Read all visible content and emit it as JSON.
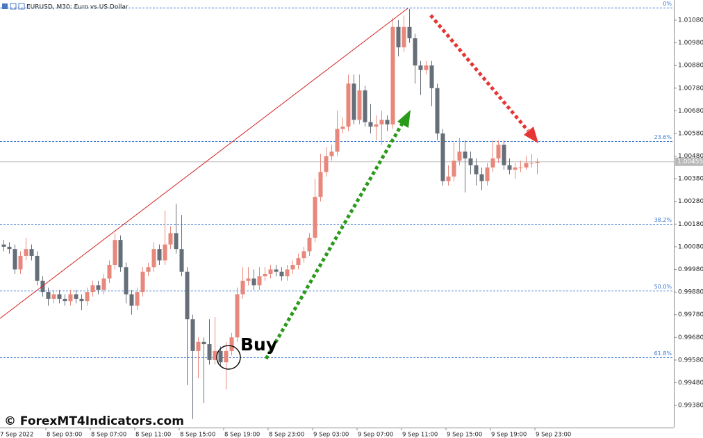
{
  "chart_data": {
    "type": "candlestick",
    "title": "EURUSD, M30:  Euro vs US Dollar",
    "watermark": "© ForexMT4Indicators.com",
    "annotation": "Buy",
    "up_color": "#e8877b",
    "down_color": "#666e78",
    "open": [
      1.0009,
      1.0008,
      1.0007,
      0.9998,
      1.0004,
      1.0007,
      1.0004,
      0.9993,
      0.9988,
      0.9985,
      0.9987,
      0.9985,
      0.9984,
      0.9987,
      0.9985,
      0.9984,
      0.9988,
      0.9991,
      0.9989,
      0.9994,
      1.0,
      1.0011,
      0.9999,
      0.9987,
      0.9982,
      0.9988,
      0.9997,
      0.9999,
      1.0007,
      1.0002,
      1.0009,
      1.0014,
      1.0007,
      0.9997,
      0.9976,
      0.9962,
      0.9966,
      0.9965,
      0.9958,
      0.9962,
      0.9957,
      0.9962,
      0.9968,
      0.9987,
      0.9993,
      0.9994,
      0.9991,
      0.9995,
      0.9996,
      0.9998,
      0.9997,
      0.9995,
      0.9998,
      1.0,
      1.0003,
      1.0006,
      1.0012,
      1.003,
      1.0041,
      1.0048,
      1.005,
      1.006,
      1.0061,
      1.008,
      1.0064,
      1.0077,
      1.0063,
      1.0061,
      1.0062,
      1.0064,
      1.0062,
      1.0105,
      1.0096,
      1.0105,
      1.01,
      1.0088,
      1.0086,
      1.0088,
      1.0078,
      1.0058,
      1.0037,
      1.0039,
      1.0046,
      1.005,
      1.0047,
      1.0044,
      1.004,
      1.0037,
      1.0043,
      1.0047,
      1.0053,
      1.0044,
      1.0042,
      1.0043,
      1.0043,
      1.0045,
      1.0045
    ],
    "high": [
      1.0011,
      1.001,
      1.0009,
      1.0006,
      1.0012,
      1.0009,
      1.0006,
      0.9995,
      0.999,
      0.9989,
      0.9989,
      0.9987,
      0.9989,
      0.9989,
      0.9987,
      0.999,
      0.9993,
      0.9993,
      0.9996,
      1.0002,
      1.0014,
      1.0013,
      1.0001,
      0.9989,
      0.999,
      0.9999,
      1.0001,
      1.001,
      1.0009,
      1.0024,
      1.0017,
      1.0027,
      1.0022,
      0.9999,
      0.9978,
      0.9968,
      0.9968,
      0.9976,
      0.9977,
      0.9964,
      0.9966,
      0.997,
      0.999,
      0.9999,
      0.9999,
      0.9998,
      0.9999,
      0.9999,
      1.0,
      1.0,
      0.9999,
      1.0,
      1.0002,
      1.0005,
      1.0008,
      1.0014,
      1.0038,
      1.0049,
      1.0052,
      1.0053,
      1.0068,
      1.0065,
      1.0084,
      1.0084,
      1.0084,
      1.0079,
      1.0071,
      1.0066,
      1.0068,
      1.0066,
      1.0109,
      1.0108,
      1.011,
      1.0113,
      1.0102,
      1.009,
      1.009,
      1.009,
      1.008,
      1.006,
      1.0044,
      1.0054,
      1.0056,
      1.0055,
      1.005,
      1.0047,
      1.0043,
      1.0045,
      1.0055,
      1.0055,
      1.0055,
      1.0047,
      1.0045,
      1.0046,
      1.0048,
      1.0049,
      1.0047
    ],
    "low": [
      1.0006,
      1.0005,
      0.9996,
      0.9996,
      1.0002,
      1.0002,
      0.9991,
      0.9986,
      0.9982,
      0.9983,
      0.9983,
      0.9982,
      0.9982,
      0.9983,
      0.998,
      0.9982,
      0.9986,
      0.9987,
      0.9987,
      0.9992,
      0.9998,
      0.9997,
      0.9983,
      0.9978,
      0.998,
      0.9986,
      0.9995,
      0.9997,
      1.0,
      1.0,
      1.0007,
      1.0005,
      0.9995,
      0.9947,
      0.9932,
      0.995,
      0.9939,
      0.9956,
      0.9956,
      0.9955,
      0.9945,
      0.996,
      0.9966,
      0.9985,
      0.9991,
      0.9989,
      0.9989,
      0.9993,
      0.9994,
      0.9995,
      0.9993,
      0.9993,
      0.9996,
      0.9998,
      1.0001,
      1.0004,
      1.001,
      1.0028,
      1.0039,
      1.0046,
      1.0048,
      1.0058,
      1.0059,
      1.0062,
      1.0062,
      1.0061,
      1.0058,
      1.0055,
      1.0053,
      1.0059,
      1.006,
      1.0092,
      1.0094,
      1.0098,
      1.008,
      1.0075,
      1.0084,
      1.007,
      1.0055,
      1.0035,
      1.0035,
      1.0037,
      1.0044,
      1.0032,
      1.004,
      1.0035,
      1.0033,
      1.0035,
      1.0041,
      1.0045,
      1.0042,
      1.004,
      1.0038,
      1.0041,
      1.0042,
      1.0043,
      1.004
    ],
    "close": [
      1.0008,
      1.0007,
      0.9998,
      1.0004,
      1.0007,
      1.0004,
      0.9993,
      0.9988,
      0.9985,
      0.9987,
      0.9985,
      0.9984,
      0.9987,
      0.9985,
      0.9984,
      0.9988,
      0.9991,
      0.9989,
      0.9994,
      1.0,
      1.0011,
      0.9999,
      0.9987,
      0.9982,
      0.9988,
      0.9997,
      0.9999,
      1.0007,
      1.0002,
      1.0009,
      1.0014,
      1.0007,
      0.9997,
      0.9976,
      0.9962,
      0.9966,
      0.9965,
      0.9958,
      0.9962,
      0.9957,
      0.9962,
      0.9968,
      0.9987,
      0.9993,
      0.9994,
      0.9991,
      0.9995,
      0.9996,
      0.9998,
      0.9997,
      0.9995,
      0.9998,
      1.0,
      1.0003,
      1.0006,
      1.0012,
      1.003,
      1.0041,
      1.0048,
      1.005,
      1.006,
      1.0061,
      1.008,
      1.0064,
      1.0077,
      1.0063,
      1.0061,
      1.0062,
      1.0064,
      1.0062,
      1.0105,
      1.0096,
      1.0105,
      1.01,
      1.0088,
      1.0086,
      1.0088,
      1.0078,
      1.0058,
      1.0037,
      1.0039,
      1.0046,
      1.005,
      1.0047,
      1.0044,
      1.004,
      1.0037,
      1.0043,
      1.0047,
      1.0053,
      1.0044,
      1.0042,
      1.0043,
      1.0043,
      1.0045,
      1.0045,
      1.00455
    ],
    "x_labels": [
      "7 Sep 2022",
      "8 Sep 03:00",
      "8 Sep 07:00",
      "8 Sep 11:00",
      "8 Sep 15:00",
      "8 Sep 19:00",
      "8 Sep 23:00",
      "9 Sep 03:00",
      "9 Sep 07:00",
      "9 Sep 11:00",
      "9 Sep 15:00",
      "9 Sep 19:00",
      "9 Sep 23:00"
    ],
    "ylim": [
      0.99282,
      1.01169
    ],
    "yticks": [
      {
        "value": 1.0108,
        "label": "1.01080"
      },
      {
        "value": 1.0098,
        "label": "1.00980"
      },
      {
        "value": 1.0088,
        "label": "1.00880"
      },
      {
        "value": 1.0078,
        "label": "1.00780"
      },
      {
        "value": 1.0068,
        "label": "1.00680"
      },
      {
        "value": 1.0058,
        "label": "1.00580"
      },
      {
        "value": 1.0048,
        "label": "1.00480"
      },
      {
        "value": 1.0038,
        "label": "1.00380"
      },
      {
        "value": 1.0028,
        "label": "1.00280"
      },
      {
        "value": 1.0018,
        "label": "1.00180"
      },
      {
        "value": 1.0008,
        "label": "1.00080"
      },
      {
        "value": 0.9998,
        "label": "0.99980"
      },
      {
        "value": 0.9988,
        "label": "0.99880"
      },
      {
        "value": 0.9978,
        "label": "0.99780"
      },
      {
        "value": 0.9968,
        "label": "0.99680"
      },
      {
        "value": 0.9958,
        "label": "0.99580"
      },
      {
        "value": 0.9948,
        "label": "0.99480"
      },
      {
        "value": 0.9938,
        "label": "0.99380"
      }
    ],
    "fib_levels": [
      {
        "value": 1.01135,
        "label": "0%"
      },
      {
        "value": 1.00546,
        "label": "23.6%"
      },
      {
        "value": 1.0018,
        "label": "38.2%"
      },
      {
        "value": 0.99887,
        "label": "50.0%"
      },
      {
        "value": 0.99592,
        "label": "61.8%"
      }
    ],
    "current_price": {
      "value": 1.00455,
      "label": "1.00455"
    }
  }
}
